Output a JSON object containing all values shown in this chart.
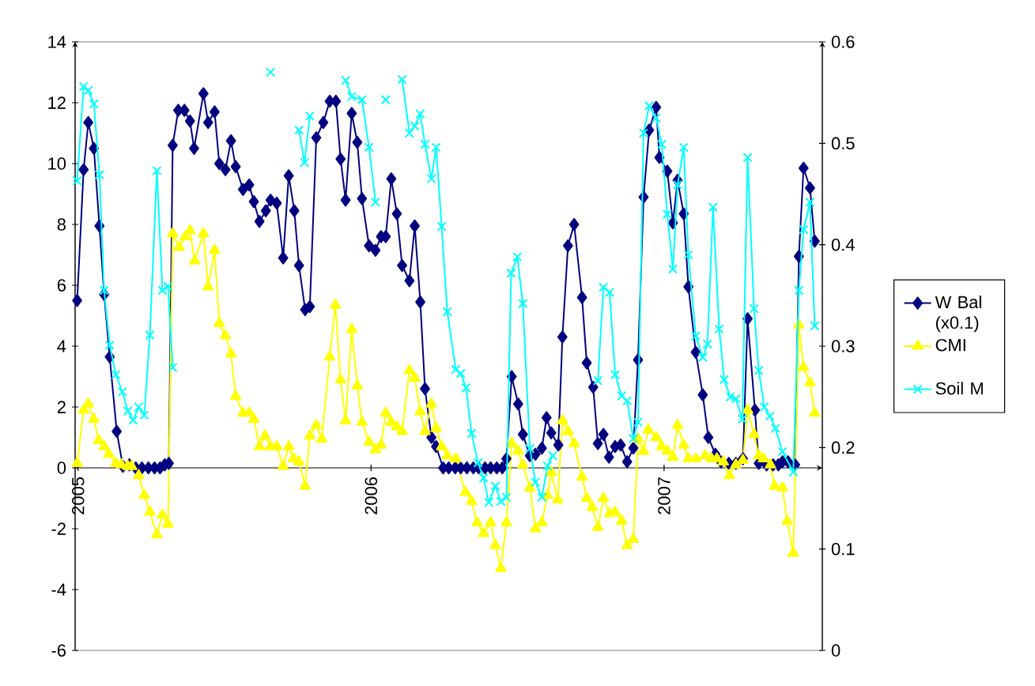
{
  "chart_data": {
    "type": "line",
    "xlim": [
      2004.99,
      2007.54
    ],
    "xticks": [
      2005,
      2006,
      2007
    ],
    "ylim": [
      -6,
      14
    ],
    "yticks": [
      -6,
      -4,
      -2,
      0,
      2,
      4,
      6,
      8,
      10,
      12,
      14
    ],
    "y2lim": [
      0,
      0.6
    ],
    "y2ticks": [
      0,
      0.1,
      0.2,
      0.3,
      0.4,
      0.5,
      0.6
    ],
    "legend": "right",
    "series": [
      {
        "name": "W Bal (x0.1)",
        "color": "#000080",
        "marker": "diamond",
        "x": [
          2004.997,
          2005.019,
          2005.035,
          2005.054,
          2005.073,
          2005.089,
          2005.108,
          2005.132,
          2005.153,
          2005.175,
          2005.197,
          2005.218,
          2005.24,
          2005.261,
          2005.28,
          2005.296,
          2005.31,
          2005.323,
          2005.342,
          2005.363,
          2005.382,
          2005.396,
          2005.428,
          2005.444,
          2005.466,
          2005.482,
          2005.503,
          2005.522,
          2005.538,
          2005.563,
          2005.584,
          2005.6,
          2005.619,
          2005.641,
          2005.657,
          2005.678,
          2005.7,
          2005.719,
          2005.738,
          2005.754,
          2005.775,
          2005.791,
          2005.813,
          2005.837,
          2005.859,
          2005.88,
          2005.896,
          2005.913,
          2005.934,
          2005.953,
          2005.969,
          2005.993,
          2006.015,
          2006.034,
          2006.05,
          2006.069,
          2006.088,
          2006.106,
          2006.131,
          2006.149,
          2006.168,
          2006.184,
          2006.206,
          2006.222,
          2006.246,
          2006.265,
          2006.287,
          2006.306,
          2006.327,
          2006.349,
          2006.367,
          2006.389,
          2006.408,
          2006.429,
          2006.448,
          2006.462,
          2006.48,
          2006.502,
          2006.518,
          2006.542,
          2006.561,
          2006.583,
          2006.599,
          2006.615,
          2006.639,
          2006.653,
          2006.672,
          2006.693,
          2006.72,
          2006.736,
          2006.758,
          2006.774,
          2006.793,
          2006.812,
          2006.833,
          2006.852,
          2006.874,
          2006.895,
          2006.911,
          2006.93,
          2006.949,
          2006.973,
          2006.984,
          2007.011,
          2007.03,
          2007.046,
          2007.067,
          2007.083,
          2007.108,
          2007.132,
          2007.151,
          2007.175,
          2007.194,
          2007.221,
          2007.245,
          2007.269,
          2007.285,
          2007.31,
          2007.323,
          2007.35,
          2007.372,
          2007.39,
          2007.404,
          2007.423,
          2007.447,
          2007.46,
          2007.476,
          2007.498,
          2007.514
        ],
        "values": [
          5.5,
          9.8,
          11.35,
          10.5,
          7.95,
          5.7,
          3.65,
          1.2,
          0.05,
          0.1,
          0,
          0,
          0,
          0,
          0,
          0.1,
          0.15,
          10.6,
          11.75,
          11.75,
          11.4,
          10.5,
          12.3,
          11.35,
          11.7,
          10.0,
          9.8,
          10.75,
          9.9,
          9.15,
          9.3,
          8.75,
          8.1,
          8.45,
          8.8,
          8.7,
          6.9,
          9.6,
          8.45,
          6.65,
          5.2,
          5.3,
          10.85,
          11.35,
          12.05,
          12.05,
          10.15,
          8.8,
          11.65,
          10.7,
          8.85,
          7.3,
          7.15,
          7.6,
          7.6,
          9.5,
          8.35,
          6.65,
          6.15,
          7.95,
          5.45,
          2.6,
          1.0,
          0.7,
          0,
          0,
          0,
          0,
          0,
          0,
          0,
          0,
          0,
          0,
          0,
          0.3,
          3.0,
          2.1,
          1.1,
          0.4,
          0.45,
          0.65,
          1.65,
          1.15,
          0.75,
          4.3,
          7.3,
          8.0,
          5.6,
          3.45,
          2.65,
          0.8,
          1.1,
          0.35,
          0.7,
          0.75,
          0.2,
          0.65,
          3.55,
          8.9,
          11.1,
          11.85,
          10.2,
          9.75,
          8.05,
          9.45,
          8.35,
          5.95,
          3.8,
          2.4,
          1.0,
          0.45,
          0.2,
          0.15,
          0.15,
          0.3,
          4.9,
          1.9,
          0.15,
          0.1,
          0.1,
          0.1,
          0.2,
          0.2,
          0.1,
          6.95,
          9.85,
          9.2,
          7.45
        ]
      },
      {
        "name": "CMI",
        "color": "#ffff00",
        "marker": "triangle",
        "x": [
          2004.997,
          2005.019,
          2005.035,
          2005.054,
          2005.07,
          2005.089,
          2005.105,
          2005.129,
          2005.148,
          2005.17,
          2005.183,
          2005.207,
          2005.226,
          2005.245,
          2005.269,
          2005.288,
          2005.307,
          2005.323,
          2005.345,
          2005.366,
          2005.382,
          2005.398,
          2005.428,
          2005.444,
          2005.466,
          2005.482,
          2005.503,
          2005.522,
          2005.538,
          2005.563,
          2005.584,
          2005.6,
          2005.619,
          2005.638,
          2005.657,
          2005.678,
          2005.7,
          2005.719,
          2005.735,
          2005.754,
          2005.775,
          2005.791,
          2005.813,
          2005.832,
          2005.859,
          2005.878,
          2005.896,
          2005.913,
          2005.934,
          2005.953,
          2005.969,
          2005.993,
          2006.015,
          2006.034,
          2006.05,
          2006.069,
          2006.088,
          2006.106,
          2006.131,
          2006.149,
          2006.168,
          2006.184,
          2006.206,
          2006.222,
          2006.241,
          2006.26,
          2006.289,
          2006.322,
          2006.343,
          2006.362,
          2006.384,
          2006.408,
          2006.424,
          2006.443,
          2006.462,
          2006.48,
          2006.502,
          2006.518,
          2006.542,
          2006.561,
          2006.583,
          2006.602,
          2006.615,
          2006.637,
          2006.653,
          2006.672,
          2006.693,
          2006.72,
          2006.736,
          2006.755,
          2006.774,
          2006.793,
          2006.814,
          2006.833,
          2006.855,
          2006.874,
          2006.895,
          2006.911,
          2006.93,
          2006.946,
          2006.973,
          2006.992,
          2007.011,
          2007.03,
          2007.046,
          2007.067,
          2007.083,
          2007.108,
          2007.14,
          2007.162,
          2007.18,
          2007.202,
          2007.223,
          2007.245,
          2007.269,
          2007.285,
          2007.307,
          2007.323,
          2007.339,
          2007.363,
          2007.377,
          2007.404,
          2007.42,
          2007.441,
          2007.46,
          2007.476,
          2007.498,
          2007.514
        ],
        "values": [
          0.15,
          1.9,
          2.1,
          1.6,
          0.9,
          0.7,
          0.45,
          0.15,
          0.1,
          0.05,
          0.05,
          -0.25,
          -0.9,
          -1.45,
          -2.2,
          -1.55,
          -1.85,
          7.7,
          7.25,
          7.6,
          7.8,
          6.8,
          7.7,
          5.95,
          7.15,
          4.75,
          4.35,
          3.75,
          2.35,
          1.8,
          1.8,
          1.6,
          0.7,
          1.05,
          0.7,
          0.7,
          0.05,
          0.7,
          0.3,
          0.2,
          -0.6,
          1.05,
          1.4,
          0.95,
          3.65,
          5.35,
          2.9,
          1.55,
          4.55,
          2.7,
          1.5,
          0.85,
          0.6,
          0.75,
          1.8,
          1.5,
          1.35,
          1.2,
          3.2,
          2.95,
          1.85,
          1.2,
          2.1,
          1.3,
          0.7,
          0.4,
          0.3,
          -0.8,
          -1.1,
          -1.8,
          -2.15,
          -1.8,
          -2.55,
          -3.3,
          -1.8,
          0.8,
          0.55,
          0.1,
          -0.65,
          -2.0,
          -1.8,
          -0.9,
          -0.15,
          -1.05,
          1.55,
          1.2,
          0.8,
          -0.3,
          -1.0,
          -1.3,
          -1.95,
          -1.0,
          -1.5,
          -1.45,
          -1.75,
          -2.55,
          -2.35,
          0.95,
          0.55,
          1.25,
          1.0,
          0.7,
          0.55,
          0.35,
          1.4,
          0.75,
          0.3,
          0.3,
          0.4,
          0.3,
          0.3,
          0.2,
          -0.25,
          0.1,
          0.25,
          1.9,
          1.1,
          0.4,
          0.3,
          0.1,
          -0.6,
          -0.65,
          -1.75,
          -2.8,
          4.7,
          3.3,
          2.8,
          1.8
        ]
      },
      {
        "name": "Soil M",
        "color": "#00ffff",
        "marker": "cross",
        "axis": "y2",
        "x": [
          2004.997,
          2005.019,
          2005.035,
          2005.054,
          2005.073,
          2005.089,
          2005.108,
          2005.129,
          2005.151,
          2005.17,
          2005.188,
          2005.207,
          2005.226,
          2005.245,
          2005.269,
          2005.288,
          2005.307,
          2005.323,
          2005.5,
          2005.657,
          2005.7,
          2005.754,
          2005.773,
          2005.791,
          2005.85,
          2005.913,
          2005.934,
          2005.969,
          2005.993,
          2006.015,
          2006.03,
          2006.05,
          2006.08,
          2006.106,
          2006.131,
          2006.149,
          2006.168,
          2006.184,
          2006.206,
          2006.222,
          2006.241,
          2006.26,
          2006.289,
          2006.306,
          2006.324,
          2006.343,
          2006.365,
          2006.384,
          2006.402,
          2006.424,
          2006.443,
          2006.462,
          2006.478,
          2006.499,
          2006.518,
          2006.542,
          2006.561,
          2006.583,
          2006.602,
          2006.62,
          2006.7,
          2006.774,
          2006.793,
          2006.814,
          2006.833,
          2006.855,
          2006.874,
          2006.895,
          2006.911,
          2006.93,
          2006.949,
          2006.973,
          2006.992,
          2007.011,
          2007.03,
          2007.046,
          2007.067,
          2007.083,
          2007.108,
          2007.132,
          2007.148,
          2007.167,
          2007.188,
          2007.205,
          2007.226,
          2007.245,
          2007.267,
          2007.285,
          2007.307,
          2007.323,
          2007.342,
          2007.361,
          2007.38,
          2007.404,
          2007.441,
          2007.46,
          2007.476,
          2007.498,
          2007.514
        ],
        "values": [
          0.463,
          0.556,
          0.552,
          0.539,
          0.469,
          0.355,
          0.301,
          0.272,
          0.255,
          0.236,
          0.227,
          0.24,
          0.232,
          0.311,
          0.473,
          0.355,
          0.359,
          0.279,
          null,
          0.57,
          null,
          0.513,
          0.481,
          0.527,
          null,
          0.562,
          0.546,
          0.543,
          0.496,
          0.442,
          null,
          0.543,
          null,
          0.563,
          0.51,
          0.517,
          0.529,
          0.499,
          0.465,
          0.496,
          0.418,
          0.334,
          0.277,
          0.273,
          0.259,
          0.214,
          0.185,
          0.17,
          0.146,
          0.162,
          0.147,
          0.151,
          0.372,
          0.388,
          0.342,
          0.199,
          0.166,
          0.151,
          0.182,
          0.192,
          null,
          0.266,
          0.358,
          0.353,
          0.272,
          0.251,
          0.246,
          0.209,
          0.225,
          0.51,
          0.537,
          0.525,
          0.499,
          0.43,
          0.376,
          0.459,
          0.496,
          0.39,
          0.31,
          0.289,
          0.302,
          0.437,
          0.317,
          0.267,
          0.25,
          0.248,
          0.228,
          0.486,
          0.337,
          0.276,
          0.24,
          0.231,
          0.219,
          0.196,
          0.176,
          0.355,
          0.415,
          0.442,
          0.32
        ]
      }
    ]
  }
}
